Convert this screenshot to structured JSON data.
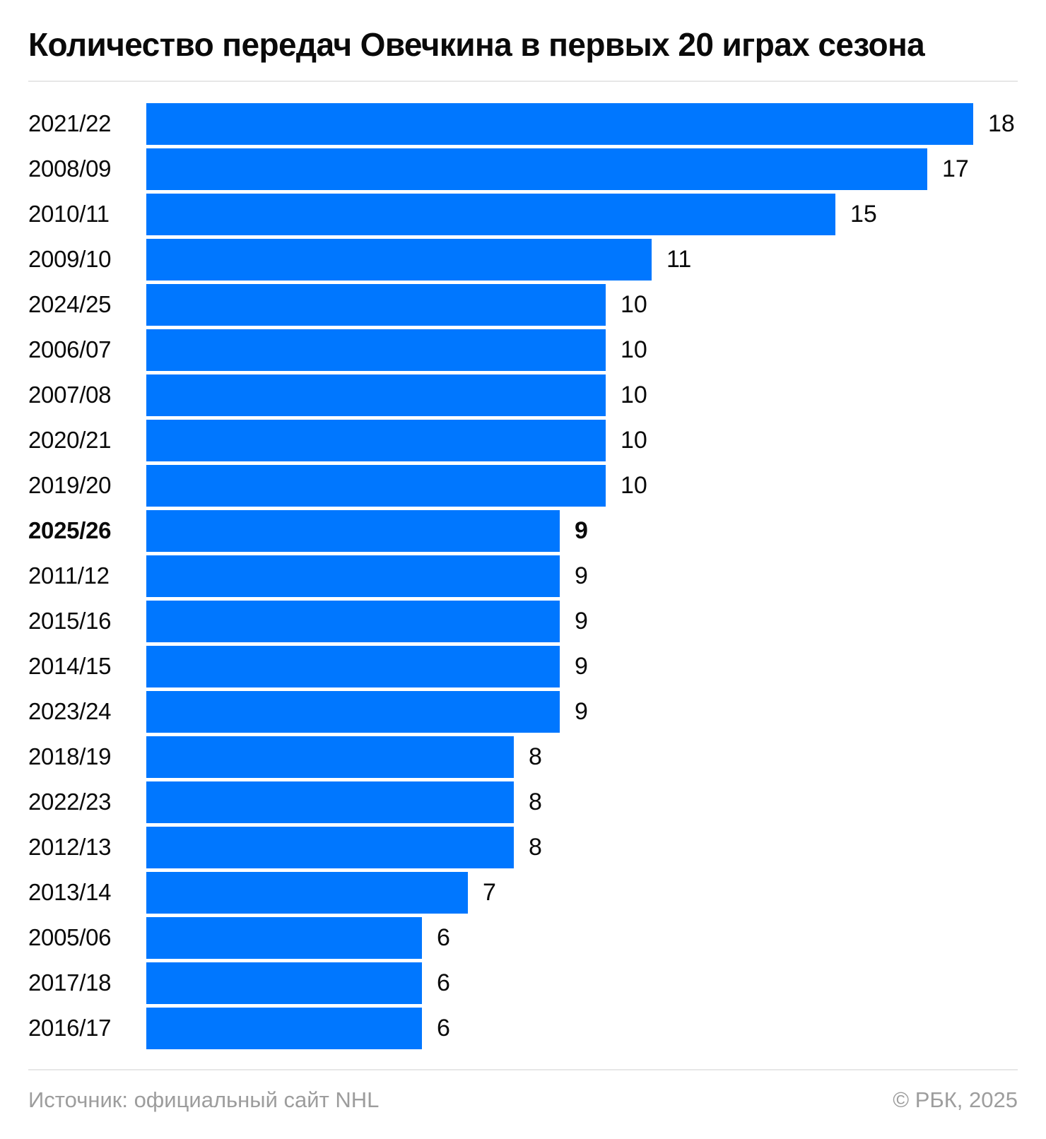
{
  "title": "Количество передач Овечкина в первых 20 играх сезона",
  "theme": {
    "bar_color": "#0077FF",
    "text_color": "#0A0A0A",
    "muted_text_color": "#9D9D9D",
    "divider_color": "#E7E7E7"
  },
  "chart_data": {
    "type": "bar",
    "orientation": "horizontal",
    "title": "Количество передач Овечкина в первых 20 играх сезона",
    "xlabel": "",
    "ylabel": "",
    "xlim": [
      0,
      18
    ],
    "grid": false,
    "legend": false,
    "value_labels": "right-of-bar",
    "highlighted_category": "2025/26",
    "categories": [
      "2021/22",
      "2008/09",
      "2010/11",
      "2009/10",
      "2024/25",
      "2006/07",
      "2007/08",
      "2020/21",
      "2019/20",
      "2025/26",
      "2011/12",
      "2015/16",
      "2014/15",
      "2023/24",
      "2018/19",
      "2022/23",
      "2012/13",
      "2013/14",
      "2005/06",
      "2017/18",
      "2016/17"
    ],
    "values": [
      18,
      17,
      15,
      11,
      10,
      10,
      10,
      10,
      10,
      9,
      9,
      9,
      9,
      9,
      8,
      8,
      8,
      7,
      6,
      6,
      6
    ],
    "rows": [
      {
        "season": "2021/22",
        "value": 18,
        "highlight": false
      },
      {
        "season": "2008/09",
        "value": 17,
        "highlight": false
      },
      {
        "season": "2010/11",
        "value": 15,
        "highlight": false
      },
      {
        "season": "2009/10",
        "value": 11,
        "highlight": false
      },
      {
        "season": "2024/25",
        "value": 10,
        "highlight": false
      },
      {
        "season": "2006/07",
        "value": 10,
        "highlight": false
      },
      {
        "season": "2007/08",
        "value": 10,
        "highlight": false
      },
      {
        "season": "2020/21",
        "value": 10,
        "highlight": false
      },
      {
        "season": "2019/20",
        "value": 10,
        "highlight": false
      },
      {
        "season": "2025/26",
        "value": 9,
        "highlight": true
      },
      {
        "season": "2011/12",
        "value": 9,
        "highlight": false
      },
      {
        "season": "2015/16",
        "value": 9,
        "highlight": false
      },
      {
        "season": "2014/15",
        "value": 9,
        "highlight": false
      },
      {
        "season": "2023/24",
        "value": 9,
        "highlight": false
      },
      {
        "season": "2018/19",
        "value": 8,
        "highlight": false
      },
      {
        "season": "2022/23",
        "value": 8,
        "highlight": false
      },
      {
        "season": "2012/13",
        "value": 8,
        "highlight": false
      },
      {
        "season": "2013/14",
        "value": 7,
        "highlight": false
      },
      {
        "season": "2005/06",
        "value": 6,
        "highlight": false
      },
      {
        "season": "2017/18",
        "value": 6,
        "highlight": false
      },
      {
        "season": "2016/17",
        "value": 6,
        "highlight": false
      }
    ]
  },
  "footer": {
    "source": "Источник: официальный сайт NHL",
    "copyright": "© РБК, 2025"
  }
}
